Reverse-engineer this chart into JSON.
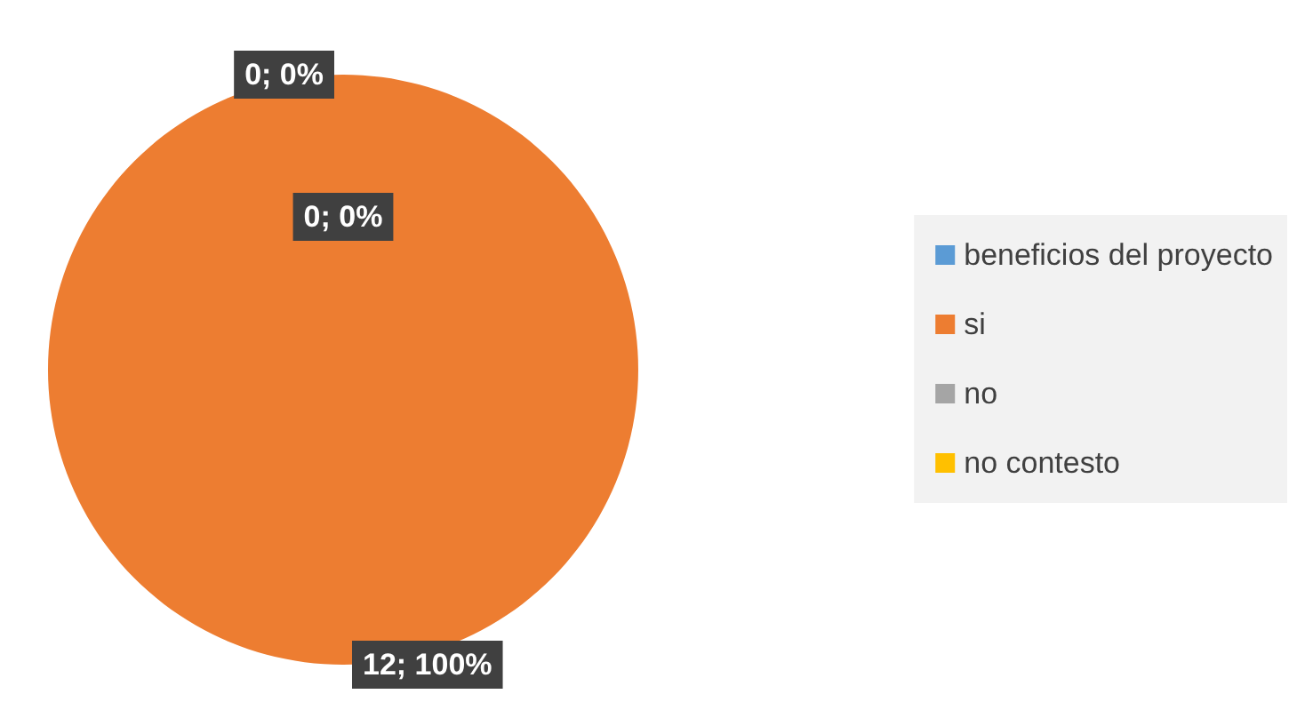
{
  "chart_data": {
    "type": "pie",
    "categories": [
      "beneficios del proyecto",
      "si",
      "no",
      "no contesto"
    ],
    "values": [
      null,
      12,
      0,
      0
    ],
    "colors": [
      "#5b9bd5",
      "#ed7d31",
      "#a5a5a5",
      "#ffc000"
    ],
    "value_labels": [
      null,
      "12; 100%",
      "0; 0%",
      "0; 0%"
    ],
    "legend": "right"
  }
}
